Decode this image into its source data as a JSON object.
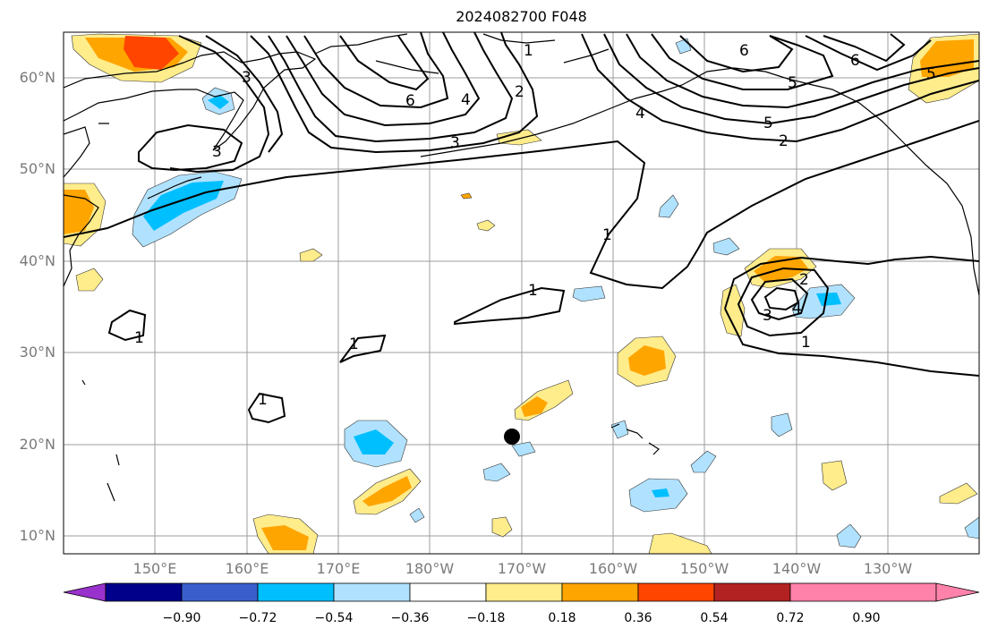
{
  "title": "2024082700 F048",
  "lat_labels": [
    "60°N",
    "50°N",
    "40°N",
    "30°N",
    "20°N",
    "10°N"
  ],
  "lon_labels": [
    "150°E",
    "160°E",
    "170°E",
    "180°W",
    "170°W",
    "160°W",
    "150°W",
    "140°W",
    "130°W"
  ],
  "contour_labels": [
    "1",
    "2",
    "3",
    "4",
    "5",
    "6"
  ],
  "colorbar": {
    "tick_labels": [
      "−0.90",
      "−0.72",
      "−0.54",
      "−0.36",
      "−0.18",
      "0.18",
      "0.36",
      "0.54",
      "0.72",
      "0.90"
    ],
    "colors": [
      "#9932cc",
      "#00008b",
      "#3a5fcd",
      "#00bfff",
      "#b0e2ff",
      "#ffffff",
      "#ffec8b",
      "#ffa500",
      "#ff4500",
      "#b22222",
      "#ff82ab"
    ]
  },
  "marker": {
    "lat": 20.6,
    "lon": -171.2
  }
}
